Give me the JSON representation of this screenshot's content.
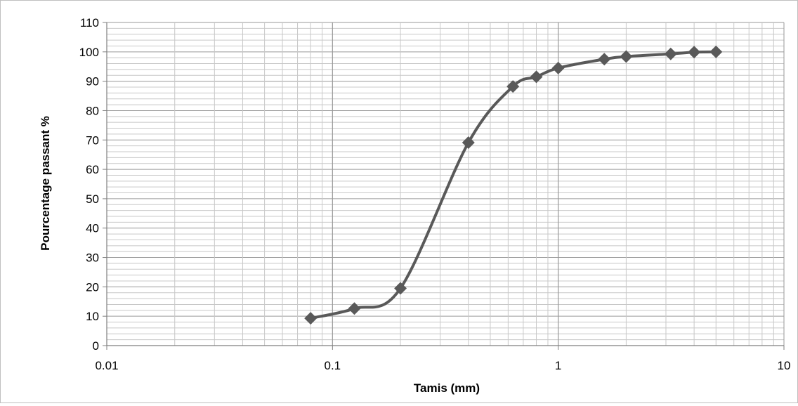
{
  "chart_data": {
    "type": "scatter",
    "xlabel": "Tamis (mm)",
    "ylabel": "Pourcentage passant %",
    "xscale": "log",
    "xlim": [
      0.01,
      10
    ],
    "ylim": [
      0,
      110
    ],
    "x_tick_labels": [
      "0.01",
      "0.1",
      "1",
      "10"
    ],
    "y_tick_labels": [
      "0",
      "10",
      "20",
      "30",
      "40",
      "50",
      "60",
      "70",
      "80",
      "90",
      "100",
      "110"
    ],
    "grid": true,
    "legend": "none",
    "series": [
      {
        "line": "smooth",
        "marker": "diamond",
        "color": "#595959",
        "x": [
          0.08,
          0.125,
          0.2,
          0.4,
          0.63,
          0.8,
          1,
          1.6,
          2,
          3.15,
          4,
          5
        ],
        "y": [
          9.3,
          12.6,
          19.5,
          69.1,
          88.2,
          91.5,
          94.5,
          97.5,
          98.4,
          99.3,
          99.9,
          100
        ]
      }
    ]
  }
}
